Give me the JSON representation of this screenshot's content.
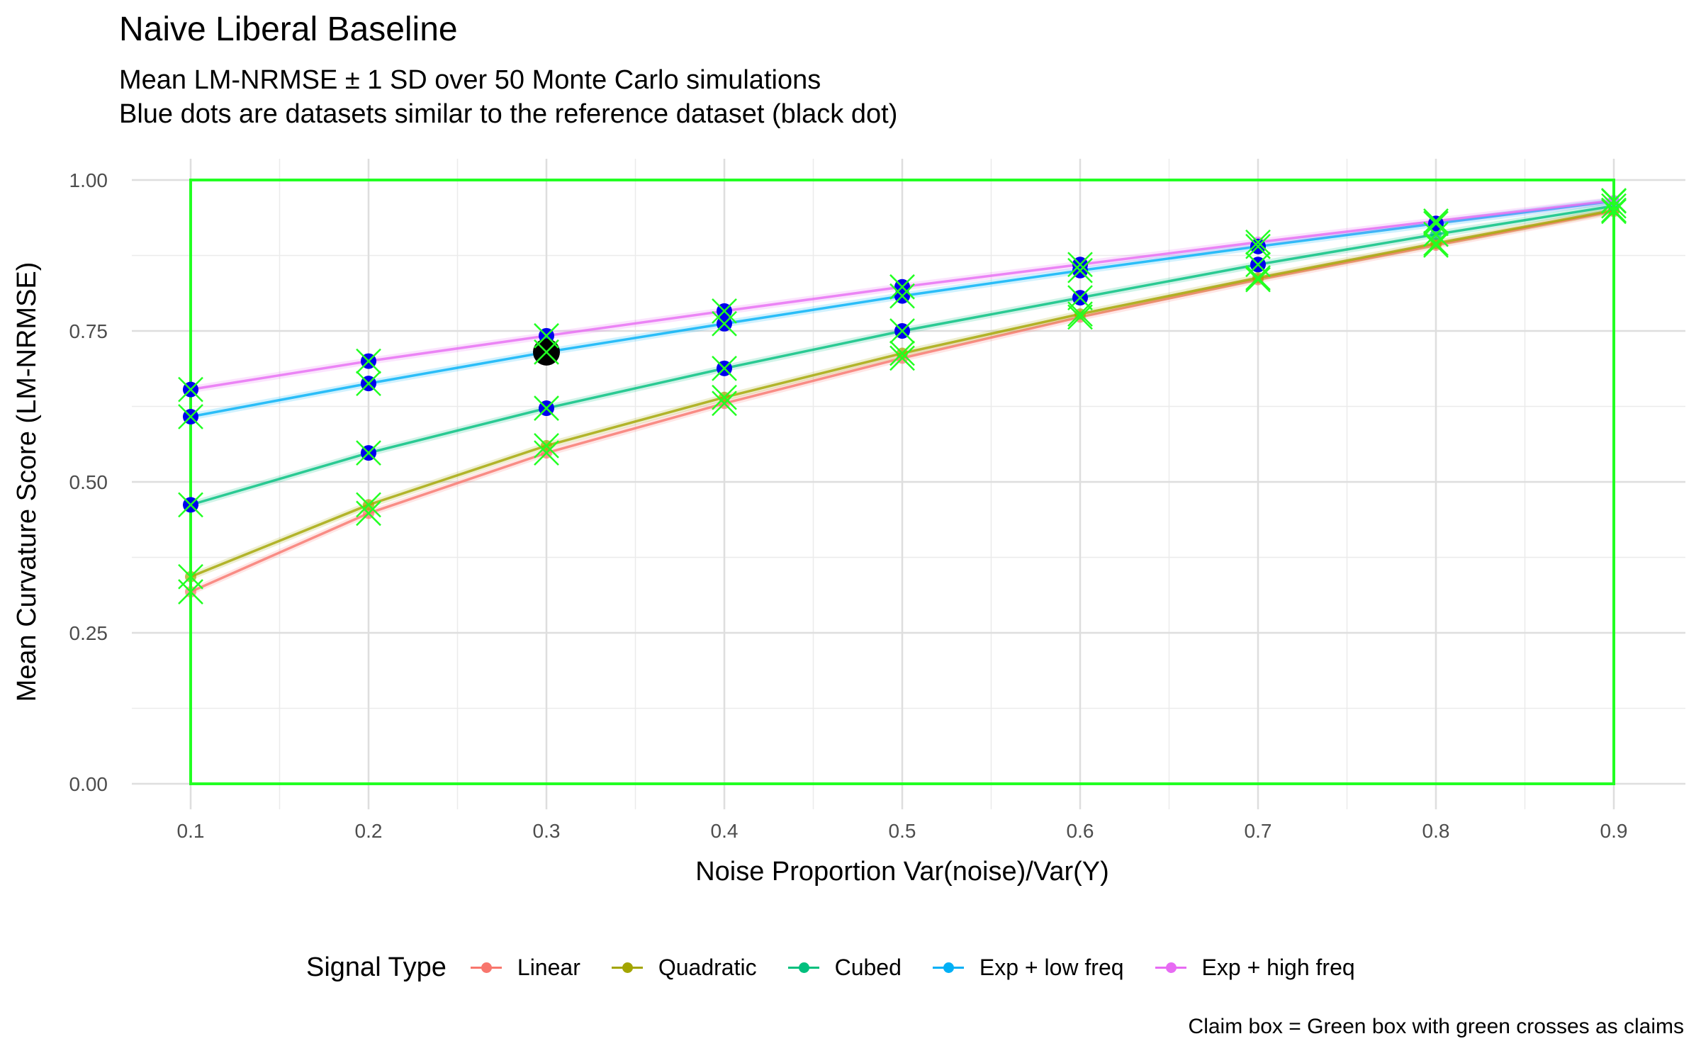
{
  "title": "Naive Liberal Baseline",
  "subtitle_line1": "Mean LM-NRMSE ± 1 SD over 50 Monte Carlo simulations",
  "subtitle_line2": "Blue dots are datasets similar to the reference dataset (black dot)",
  "caption": "Claim box = Green box with green crosses as claims",
  "colors": {
    "claim": "#22ff22",
    "similar_dot": "#0000ee",
    "reference_dot": "#000000"
  },
  "chart_data": {
    "type": "line",
    "xlabel": "Noise Proportion Var(noise)/Var(Y)",
    "ylabel": "Mean Curvature Score (LM-NRMSE)",
    "xlim": [
      0.05,
      0.92
    ],
    "ylim": [
      0,
      1
    ],
    "x": [
      0.1,
      0.2,
      0.3,
      0.4,
      0.5,
      0.6,
      0.7,
      0.8,
      0.9
    ],
    "x_tick_labels": [
      "0.1",
      "0.2",
      "0.3",
      "0.4",
      "0.5",
      "0.6",
      "0.7",
      "0.8",
      "0.9"
    ],
    "y_ticks": [
      0,
      0.25,
      0.5,
      0.75,
      1.0
    ],
    "y_tick_labels": [
      "0.00",
      "0.25",
      "0.50",
      "0.75",
      "1.00"
    ],
    "grid": true,
    "legend": {
      "title": "Signal Type",
      "position": "bottom"
    },
    "series": [
      {
        "name": "Linear",
        "color": "#F8766D",
        "values": [
          0.318,
          0.448,
          0.548,
          0.63,
          0.705,
          0.773,
          0.835,
          0.892,
          0.948
        ]
      },
      {
        "name": "Quadratic",
        "color": "#A3A500",
        "values": [
          0.343,
          0.462,
          0.56,
          0.64,
          0.713,
          0.778,
          0.838,
          0.895,
          0.95
        ]
      },
      {
        "name": "Cubed",
        "color": "#00BF7D",
        "values": [
          0.462,
          0.548,
          0.622,
          0.688,
          0.75,
          0.805,
          0.86,
          0.91,
          0.957
        ]
      },
      {
        "name": "Exp + low freq",
        "color": "#00B0F6",
        "values": [
          0.608,
          0.663,
          0.715,
          0.762,
          0.808,
          0.85,
          0.89,
          0.928,
          0.965
        ]
      },
      {
        "name": "Exp + high freq",
        "color": "#E76BF3",
        "values": [
          0.653,
          0.7,
          0.742,
          0.783,
          0.823,
          0.86,
          0.897,
          0.932,
          0.966
        ]
      }
    ],
    "similar_points": [
      {
        "x": 0.1,
        "y": 0.608
      },
      {
        "x": 0.1,
        "y": 0.653
      },
      {
        "x": 0.1,
        "y": 0.462
      },
      {
        "x": 0.2,
        "y": 0.663
      },
      {
        "x": 0.2,
        "y": 0.7
      },
      {
        "x": 0.2,
        "y": 0.548
      },
      {
        "x": 0.3,
        "y": 0.622
      },
      {
        "x": 0.3,
        "y": 0.742
      },
      {
        "x": 0.4,
        "y": 0.688
      },
      {
        "x": 0.4,
        "y": 0.762
      },
      {
        "x": 0.4,
        "y": 0.783
      },
      {
        "x": 0.5,
        "y": 0.75
      },
      {
        "x": 0.5,
        "y": 0.808
      },
      {
        "x": 0.5,
        "y": 0.823
      },
      {
        "x": 0.6,
        "y": 0.805
      },
      {
        "x": 0.6,
        "y": 0.85
      },
      {
        "x": 0.6,
        "y": 0.86
      },
      {
        "x": 0.7,
        "y": 0.86
      },
      {
        "x": 0.7,
        "y": 0.89
      },
      {
        "x": 0.8,
        "y": 0.928
      }
    ],
    "reference_point": {
      "x": 0.3,
      "y": 0.715
    },
    "claim_box": {
      "x": [
        0.1,
        0.9
      ],
      "y": [
        0,
        1
      ]
    },
    "claim_points": [
      {
        "x": 0.1,
        "y": 0.318
      },
      {
        "x": 0.1,
        "y": 0.343
      },
      {
        "x": 0.1,
        "y": 0.462
      },
      {
        "x": 0.1,
        "y": 0.608
      },
      {
        "x": 0.1,
        "y": 0.653
      },
      {
        "x": 0.2,
        "y": 0.448
      },
      {
        "x": 0.2,
        "y": 0.462
      },
      {
        "x": 0.2,
        "y": 0.548
      },
      {
        "x": 0.2,
        "y": 0.663
      },
      {
        "x": 0.2,
        "y": 0.7
      },
      {
        "x": 0.3,
        "y": 0.548
      },
      {
        "x": 0.3,
        "y": 0.56
      },
      {
        "x": 0.3,
        "y": 0.622
      },
      {
        "x": 0.3,
        "y": 0.715
      },
      {
        "x": 0.3,
        "y": 0.742
      },
      {
        "x": 0.4,
        "y": 0.63
      },
      {
        "x": 0.4,
        "y": 0.64
      },
      {
        "x": 0.4,
        "y": 0.688
      },
      {
        "x": 0.4,
        "y": 0.762
      },
      {
        "x": 0.4,
        "y": 0.783
      },
      {
        "x": 0.5,
        "y": 0.705
      },
      {
        "x": 0.5,
        "y": 0.713
      },
      {
        "x": 0.5,
        "y": 0.75
      },
      {
        "x": 0.5,
        "y": 0.808
      },
      {
        "x": 0.5,
        "y": 0.823
      },
      {
        "x": 0.6,
        "y": 0.773
      },
      {
        "x": 0.6,
        "y": 0.778
      },
      {
        "x": 0.6,
        "y": 0.805
      },
      {
        "x": 0.6,
        "y": 0.85
      },
      {
        "x": 0.6,
        "y": 0.86
      },
      {
        "x": 0.7,
        "y": 0.835
      },
      {
        "x": 0.7,
        "y": 0.838
      },
      {
        "x": 0.7,
        "y": 0.86
      },
      {
        "x": 0.7,
        "y": 0.89
      },
      {
        "x": 0.7,
        "y": 0.897
      },
      {
        "x": 0.8,
        "y": 0.892
      },
      {
        "x": 0.8,
        "y": 0.895
      },
      {
        "x": 0.8,
        "y": 0.91
      },
      {
        "x": 0.8,
        "y": 0.928
      },
      {
        "x": 0.8,
        "y": 0.932
      },
      {
        "x": 0.9,
        "y": 0.948
      },
      {
        "x": 0.9,
        "y": 0.95
      },
      {
        "x": 0.9,
        "y": 0.957
      },
      {
        "x": 0.9,
        "y": 0.965
      },
      {
        "x": 0.9,
        "y": 0.966
      }
    ]
  }
}
